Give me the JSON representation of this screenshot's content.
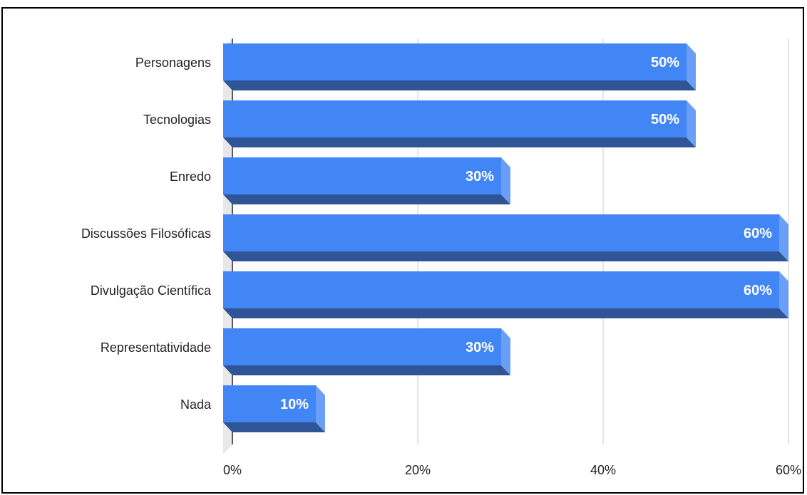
{
  "chart_data": {
    "type": "bar",
    "orientation": "horizontal",
    "style": "3d",
    "title": "",
    "xlabel": "",
    "ylabel": "",
    "categories": [
      "Personagens",
      "Tecnologias",
      "Enredo",
      "Discussões Filosóficas",
      "Divulgação Científica",
      "Representatividade",
      "Nada"
    ],
    "values": [
      50,
      50,
      30,
      60,
      60,
      30,
      10
    ],
    "data_labels": [
      "50%",
      "50%",
      "30%",
      "60%",
      "60%",
      "30%",
      "10%"
    ],
    "xlim": [
      0,
      60
    ],
    "xticks": [
      0,
      20,
      40,
      60
    ],
    "xtick_labels": [
      "0%",
      "20%",
      "40%",
      "60%"
    ],
    "grid": true,
    "legend": "none",
    "colors": {
      "bar_face": "#4285f4",
      "bar_bottom": "#2f5597",
      "bar_side": "#6b9ef7",
      "wall": "#e8e8e8",
      "grid": "#cccccc"
    }
  }
}
